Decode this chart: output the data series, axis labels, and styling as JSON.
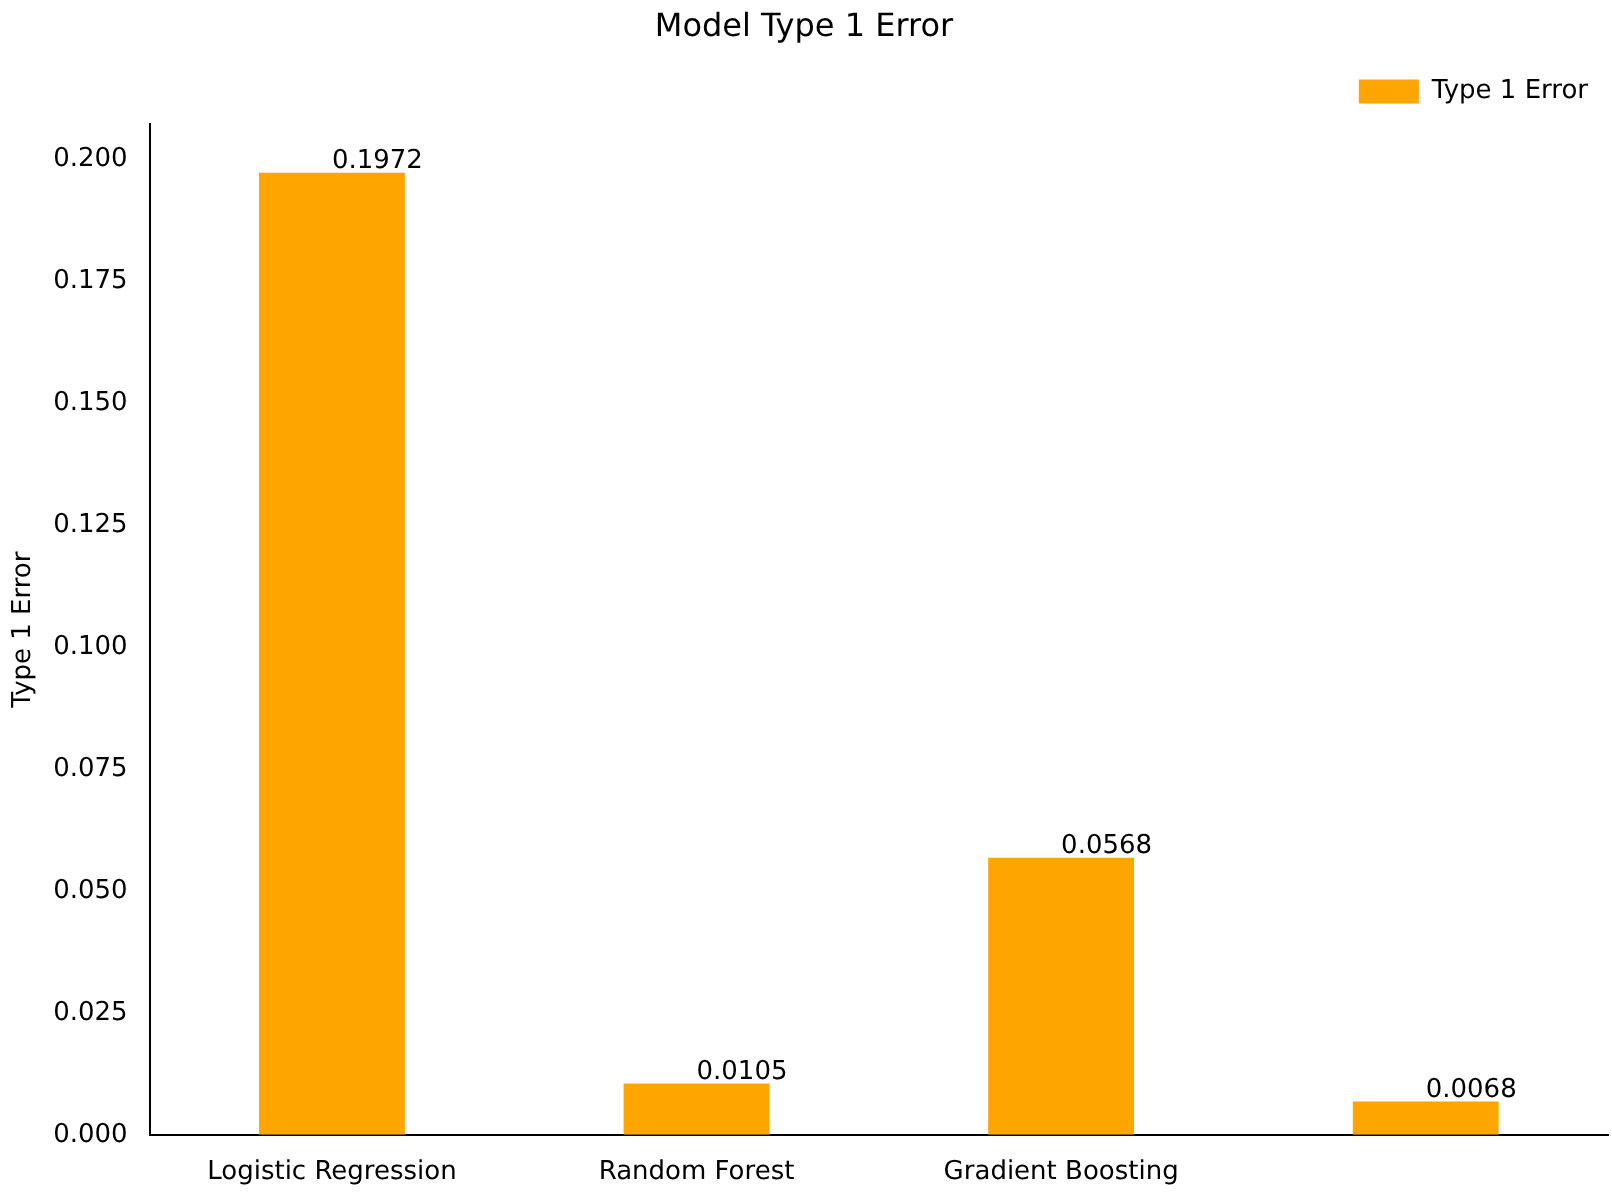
{
  "chart_data": {
    "type": "bar",
    "title": "Model Type 1 Error",
    "ylabel": "Type 1 Error",
    "categories": [
      "Logistic Regression",
      "Random Forest",
      "Gradient Boosting",
      null
    ],
    "series": [
      {
        "name": "Type 1 Error",
        "color": "#ffa500",
        "values": [
          0.1972,
          0.0105,
          0.0568,
          0.0068
        ]
      }
    ],
    "ylim": [
      0,
      0.2071
    ],
    "yticks": [
      {
        "value": 0,
        "label": "0.000"
      },
      {
        "value": 0.025,
        "label": "0.025"
      },
      {
        "value": 0.05,
        "label": "0.050"
      },
      {
        "value": 0.075,
        "label": "0.075"
      },
      {
        "value": 0.1,
        "label": "0.100"
      },
      {
        "value": 0.125,
        "label": "0.125"
      },
      {
        "value": 0.15,
        "label": "0.150"
      },
      {
        "value": 0.175,
        "label": "0.175"
      },
      {
        "value": 0.2,
        "label": "0.200"
      }
    ],
    "data_labels": true,
    "legend": "top right",
    "grid": false
  }
}
